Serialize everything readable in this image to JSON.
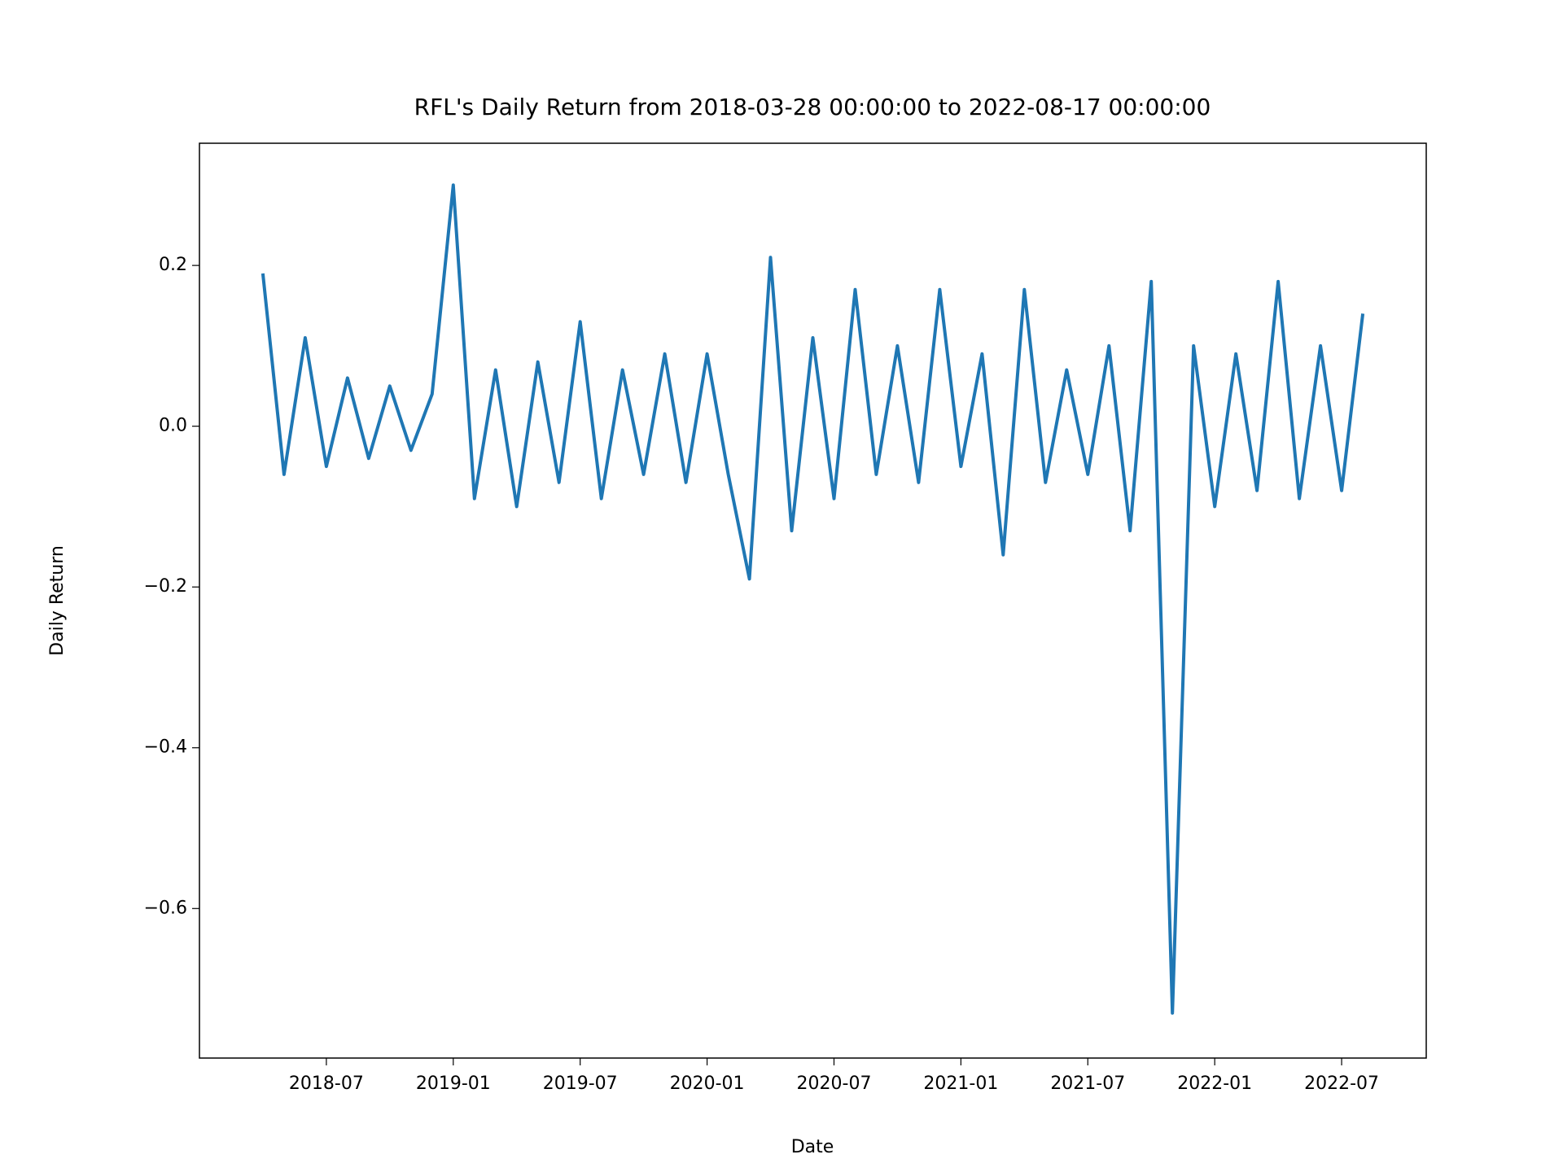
{
  "chart_data": {
    "type": "line",
    "title": "RFL's Daily Return from 2018-03-28 00:00:00 to 2022-08-17 00:00:00",
    "x_label": "Date",
    "y_label": "Daily Return",
    "x": [
      "2018-04",
      "2018-05",
      "2018-06",
      "2018-07",
      "2018-08",
      "2018-09",
      "2018-10",
      "2018-11",
      "2018-12",
      "2019-01",
      "2019-02",
      "2019-03",
      "2019-04",
      "2019-05",
      "2019-06",
      "2019-07",
      "2019-08",
      "2019-09",
      "2019-10",
      "2019-11",
      "2019-12",
      "2020-01",
      "2020-02",
      "2020-03",
      "2020-04",
      "2020-05",
      "2020-06",
      "2020-07",
      "2020-08",
      "2020-09",
      "2020-10",
      "2020-11",
      "2020-12",
      "2021-01",
      "2021-02",
      "2021-03",
      "2021-04",
      "2021-05",
      "2021-06",
      "2021-07",
      "2021-08",
      "2021-09",
      "2021-10",
      "2021-11",
      "2021-12",
      "2022-01",
      "2022-02",
      "2022-03",
      "2022-04",
      "2022-05",
      "2022-06",
      "2022-07",
      "2022-08"
    ],
    "series": [
      {
        "name": "Daily Return",
        "color": "#1f77b4",
        "values": [
          0.19,
          -0.06,
          0.11,
          -0.05,
          0.06,
          -0.04,
          0.05,
          -0.03,
          0.04,
          0.3,
          -0.09,
          0.07,
          -0.1,
          0.08,
          -0.07,
          0.13,
          -0.09,
          0.07,
          -0.06,
          0.09,
          -0.07,
          0.09,
          -0.06,
          -0.19,
          0.21,
          -0.13,
          0.11,
          -0.09,
          0.17,
          -0.06,
          0.1,
          -0.07,
          0.17,
          -0.05,
          0.09,
          -0.16,
          0.17,
          -0.07,
          0.07,
          -0.06,
          0.1,
          -0.13,
          0.18,
          -0.73,
          0.1,
          -0.1,
          0.09,
          -0.08,
          0.18,
          -0.09,
          0.1,
          -0.08,
          0.14
        ]
      }
    ],
    "xlim": [
      "2018-01",
      "2022-11"
    ],
    "xticks": [
      "2018-07",
      "2019-01",
      "2019-07",
      "2020-01",
      "2020-07",
      "2021-01",
      "2021-07",
      "2022-01",
      "2022-07"
    ],
    "ylim": [
      -0.786,
      0.352
    ],
    "yticks": [
      {
        "value": -0.6,
        "label": "−0.6"
      },
      {
        "value": -0.4,
        "label": "−0.4"
      },
      {
        "value": -0.2,
        "label": "−0.2"
      },
      {
        "value": 0,
        "label": "0.0"
      },
      0.2
    ],
    "grid": false
  }
}
